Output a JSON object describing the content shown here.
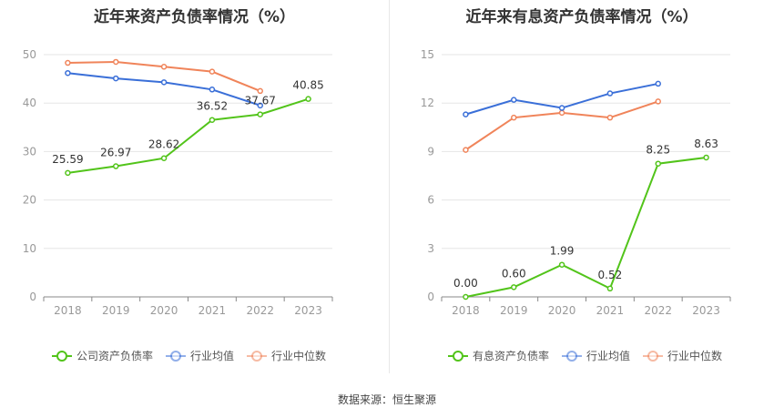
{
  "colors": {
    "company": "#52c41a",
    "avg": "#3a6fd8",
    "median": "#f0845a",
    "grid": "#e6e6e6",
    "axis": "#999999"
  },
  "source_text": "数据来源：恒生聚源",
  "chart_data": [
    {
      "type": "line",
      "title": "近年来资产负债率情况（%）",
      "categories": [
        "2018",
        "2019",
        "2020",
        "2021",
        "2022",
        "2023"
      ],
      "ylim": [
        0,
        50
      ],
      "yticks": [
        0,
        10,
        20,
        30,
        40,
        50
      ],
      "grid": true,
      "legend_position": "bottom",
      "series": [
        {
          "name": "公司资产负债率",
          "role": "company",
          "values": [
            25.59,
            26.97,
            28.62,
            36.52,
            37.67,
            40.85
          ],
          "labels": true
        },
        {
          "name": "行业均值",
          "role": "avg",
          "values": [
            46.2,
            45.1,
            44.3,
            42.8,
            39.5,
            null
          ],
          "labels": false
        },
        {
          "name": "行业中位数",
          "role": "median",
          "values": [
            48.3,
            48.5,
            47.5,
            46.5,
            42.5,
            null
          ],
          "labels": false
        }
      ]
    },
    {
      "type": "line",
      "title": "近年来有息资产负债率情况（%）",
      "categories": [
        "2018",
        "2019",
        "2020",
        "2021",
        "2022",
        "2023"
      ],
      "ylim": [
        0,
        15
      ],
      "yticks": [
        0,
        3,
        6,
        9,
        12,
        15
      ],
      "grid": true,
      "legend_position": "bottom",
      "series": [
        {
          "name": "有息资产负债率",
          "role": "company",
          "values": [
            0.0,
            0.6,
            1.99,
            0.52,
            8.25,
            8.63
          ],
          "labels": true
        },
        {
          "name": "行业均值",
          "role": "avg",
          "values": [
            11.3,
            12.2,
            11.7,
            12.6,
            13.2,
            null
          ],
          "labels": false
        },
        {
          "name": "行业中位数",
          "role": "median",
          "values": [
            9.1,
            11.1,
            11.4,
            11.1,
            12.1,
            null
          ],
          "labels": false
        }
      ]
    }
  ]
}
